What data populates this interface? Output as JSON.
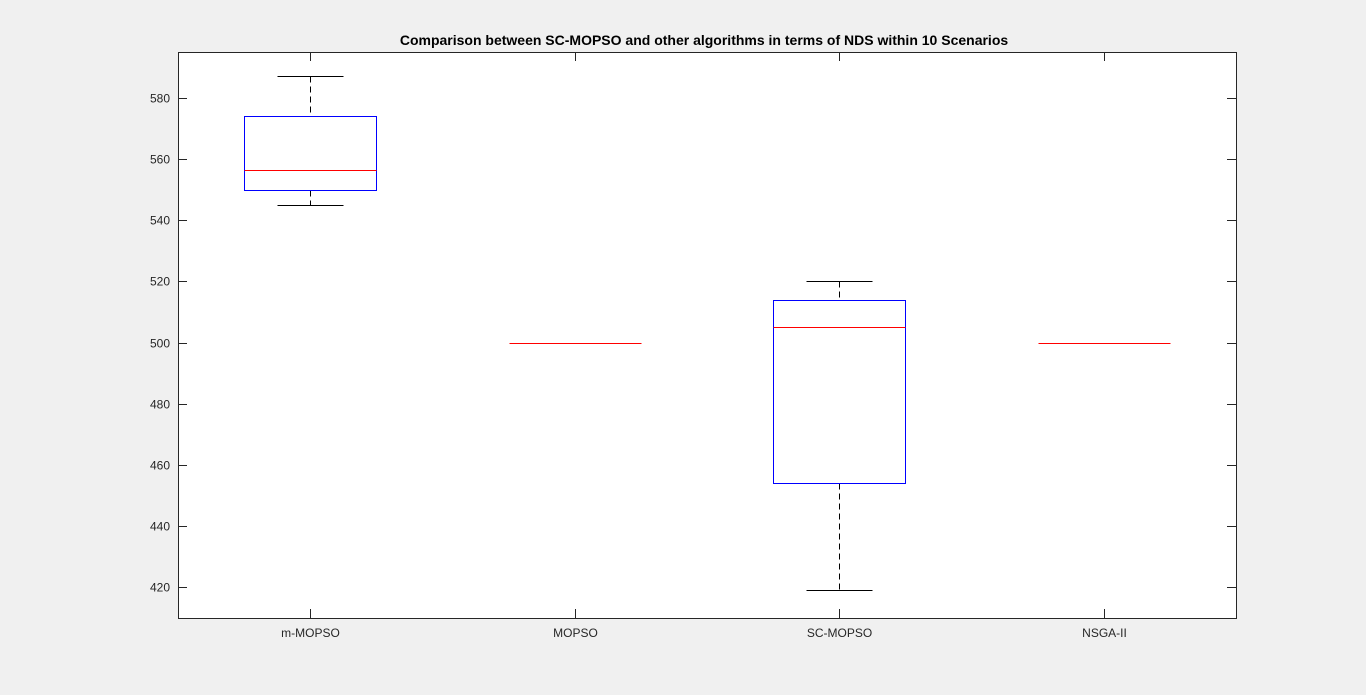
{
  "chart_data": {
    "type": "boxplot",
    "title": "Comparison between SC-MOPSO and other algorithms in terms of NDS within 10 Scenarios",
    "xlabel": "",
    "ylabel": "",
    "categories": [
      "m-MOPSO",
      "MOPSO",
      "SC-MOPSO",
      "NSGA-II"
    ],
    "ylim": [
      410,
      595
    ],
    "yticks": [
      420,
      440,
      460,
      480,
      500,
      520,
      540,
      560,
      580
    ],
    "grid": false,
    "boxes": [
      {
        "name": "m-MOPSO",
        "min": 545,
        "q1": 550,
        "median": 556.5,
        "q3": 574,
        "max": 587
      },
      {
        "name": "MOPSO",
        "min": 500,
        "q1": 500,
        "median": 500,
        "q3": 500,
        "max": 500
      },
      {
        "name": "SC-MOPSO",
        "min": 419,
        "q1": 454,
        "median": 505,
        "q3": 514,
        "max": 520
      },
      {
        "name": "NSGA-II",
        "min": 500,
        "q1": 500,
        "median": 500,
        "q3": 500,
        "max": 500
      }
    ],
    "colors": {
      "box": "#0000ff",
      "median": "#ff0000",
      "whisker": "#000000",
      "axes": "#262626",
      "background": "#f0f0f0",
      "plot_area": "#ffffff"
    }
  }
}
